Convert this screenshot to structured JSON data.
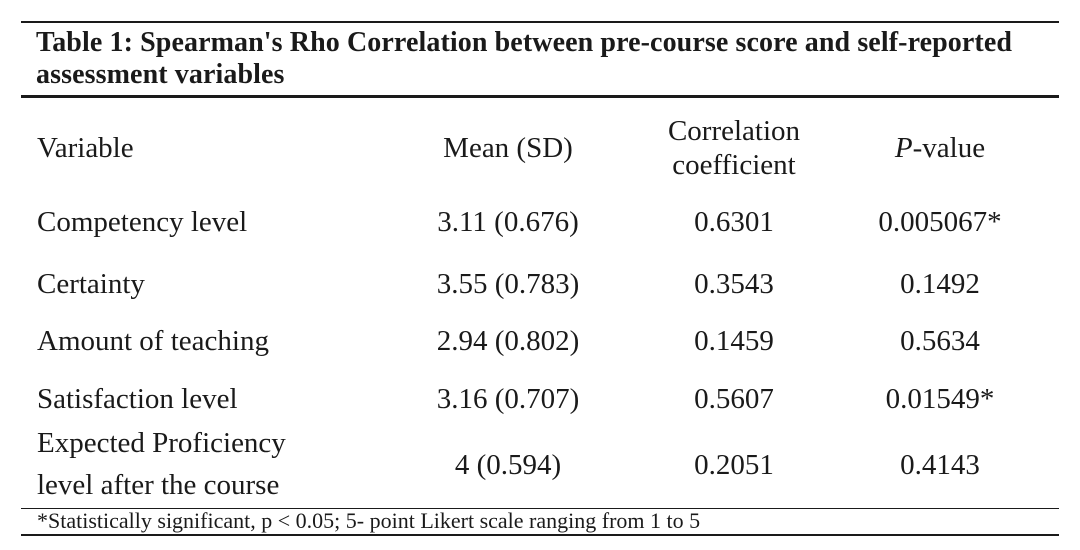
{
  "table": {
    "caption": "Table 1: Spearman's Rho Correlation between pre-course score and self-reported assessment variables",
    "headers": {
      "variable": "Variable",
      "mean": "Mean (SD)",
      "correlation_line1": "Correlation",
      "correlation_line2": "coefficient",
      "pvalue_italic": "P",
      "pvalue_rest": "-value"
    },
    "rows": [
      {
        "variable": "Competency level",
        "mean": "3.11 (0.676)",
        "correlation": "0.6301",
        "pvalue": "0.005067*"
      },
      {
        "variable": "Certainty",
        "mean": "3.55 (0.783)",
        "correlation": "0.3543",
        "pvalue": "0.1492"
      },
      {
        "variable": "Amount of teaching",
        "mean": "2.94 (0.802)",
        "correlation": "0.1459",
        "pvalue": "0.5634"
      },
      {
        "variable": "Satisfaction level",
        "mean": "3.16 (0.707)",
        "correlation": "0.5607",
        "pvalue": "0.01549*"
      },
      {
        "variable_line1": "Expected Proficiency",
        "variable_line2": "level after the course",
        "mean": "4 (0.594)",
        "correlation": "0.2051",
        "pvalue": "0.4143"
      }
    ],
    "footnote": "*Statistically significant, p < 0.05; 5- point Likert scale ranging from 1 to 5"
  }
}
